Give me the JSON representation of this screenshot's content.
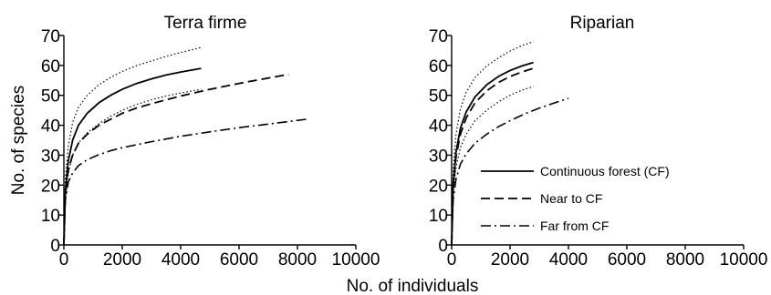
{
  "figure": {
    "shared_xlabel": "No. of individuals",
    "legend": [
      {
        "label": "Continuous forest (CF)",
        "style": "solid"
      },
      {
        "label": "Near to CF",
        "style": "dashed"
      },
      {
        "label": "Far from CF",
        "style": "dashdot"
      }
    ]
  },
  "chart_data": [
    {
      "type": "line",
      "title": "Terra firme",
      "xlabel": "No. of individuals",
      "ylabel": "No. of species",
      "xlim": [
        0,
        10000
      ],
      "ylim": [
        0,
        70
      ],
      "xticks": [
        0,
        2000,
        4000,
        6000,
        8000,
        10000
      ],
      "yticks": [
        0,
        10,
        20,
        30,
        40,
        50,
        60,
        70
      ],
      "grid": false,
      "series": [
        {
          "name": "Continuous forest (CF)",
          "style": "solid",
          "x": [
            0,
            50,
            150,
            300,
            500,
            800,
            1200,
            1600,
            2000,
            2500,
            3000,
            3500,
            4000,
            4700
          ],
          "y": [
            0,
            18,
            28,
            35,
            40,
            44,
            47.5,
            50,
            52,
            54,
            55.5,
            56.8,
            57.8,
            59
          ]
        },
        {
          "name": "Continuous forest (CF) upper 95% CI",
          "style": "dotted",
          "x": [
            0,
            50,
            150,
            300,
            500,
            800,
            1200,
            1600,
            2000,
            2500,
            3000,
            3500,
            4000,
            4700
          ],
          "y": [
            0,
            22,
            33,
            41,
            46,
            50,
            53.5,
            56,
            58,
            60,
            61.5,
            63,
            64.3,
            66
          ]
        },
        {
          "name": "Continuous forest (CF) lower 95% CI",
          "style": "dotted",
          "x": [
            0,
            50,
            150,
            300,
            500,
            800,
            1200,
            1600,
            2000,
            2500,
            3000,
            3500,
            4000,
            4700
          ],
          "y": [
            0,
            15,
            24,
            30,
            34,
            37.5,
            40.5,
            43,
            45,
            47,
            48.5,
            49.8,
            50.8,
            52
          ]
        },
        {
          "name": "Near to CF",
          "style": "dashed",
          "x": [
            0,
            50,
            150,
            300,
            500,
            800,
            1200,
            1600,
            2000,
            2500,
            3000,
            4000,
            5000,
            6000,
            7000,
            7700
          ],
          "y": [
            0,
            17,
            25,
            30,
            34,
            37,
            40,
            42,
            44,
            45.8,
            47.2,
            49.8,
            52,
            54,
            55.8,
            57
          ]
        },
        {
          "name": "Far from CF",
          "style": "dashdot",
          "x": [
            0,
            50,
            150,
            300,
            500,
            800,
            1200,
            1600,
            2000,
            3000,
            4000,
            5000,
            6000,
            7000,
            8300
          ],
          "y": [
            0,
            15,
            21,
            24,
            26.5,
            28.5,
            30.2,
            31.5,
            32.5,
            34.5,
            36.3,
            37.8,
            39.2,
            40.4,
            42
          ]
        }
      ]
    },
    {
      "type": "line",
      "title": "Riparian",
      "xlabel": "No. of individuals",
      "ylabel": "",
      "xlim": [
        0,
        10000
      ],
      "ylim": [
        0,
        70
      ],
      "xticks": [
        0,
        2000,
        4000,
        6000,
        8000,
        10000
      ],
      "yticks": [
        0,
        10,
        20,
        30,
        40,
        50,
        60,
        70
      ],
      "grid": false,
      "series": [
        {
          "name": "Continuous forest (CF)",
          "style": "solid",
          "x": [
            0,
            50,
            150,
            300,
            500,
            800,
            1200,
            1600,
            2000,
            2400,
            2800
          ],
          "y": [
            0,
            20,
            31,
            39,
            44.5,
            49.5,
            53.5,
            56.3,
            58.3,
            59.8,
            61
          ]
        },
        {
          "name": "Continuous forest (CF) upper 95% CI",
          "style": "dotted",
          "x": [
            0,
            50,
            150,
            300,
            500,
            800,
            1200,
            1600,
            2000,
            2400,
            2800
          ],
          "y": [
            0,
            25,
            37,
            45.5,
            51,
            56,
            59.8,
            62.5,
            64.8,
            66.6,
            68
          ]
        },
        {
          "name": "Near to CF",
          "style": "dashed",
          "x": [
            0,
            50,
            150,
            300,
            500,
            800,
            1200,
            1600,
            2000,
            2400,
            2800
          ],
          "y": [
            0,
            19,
            29.5,
            37,
            42.5,
            47.5,
            51.5,
            54.3,
            56.3,
            57.8,
            59
          ]
        },
        {
          "name": "Continuous forest (CF) lower 95% CI",
          "style": "dotted",
          "x": [
            0,
            50,
            150,
            300,
            500,
            800,
            1200,
            1600,
            2000,
            2400,
            2800
          ],
          "y": [
            0,
            17,
            26,
            32.5,
            37,
            41.5,
            45,
            47.8,
            50,
            51.7,
            53
          ]
        },
        {
          "name": "Far from CF",
          "style": "dashdot",
          "x": [
            0,
            50,
            150,
            300,
            500,
            800,
            1200,
            1600,
            2000,
            2500,
            3000,
            3500,
            4000
          ],
          "y": [
            0,
            15,
            22,
            27,
            30.5,
            34,
            37,
            39.5,
            41.5,
            43.8,
            45.7,
            47.4,
            49
          ]
        }
      ]
    }
  ]
}
